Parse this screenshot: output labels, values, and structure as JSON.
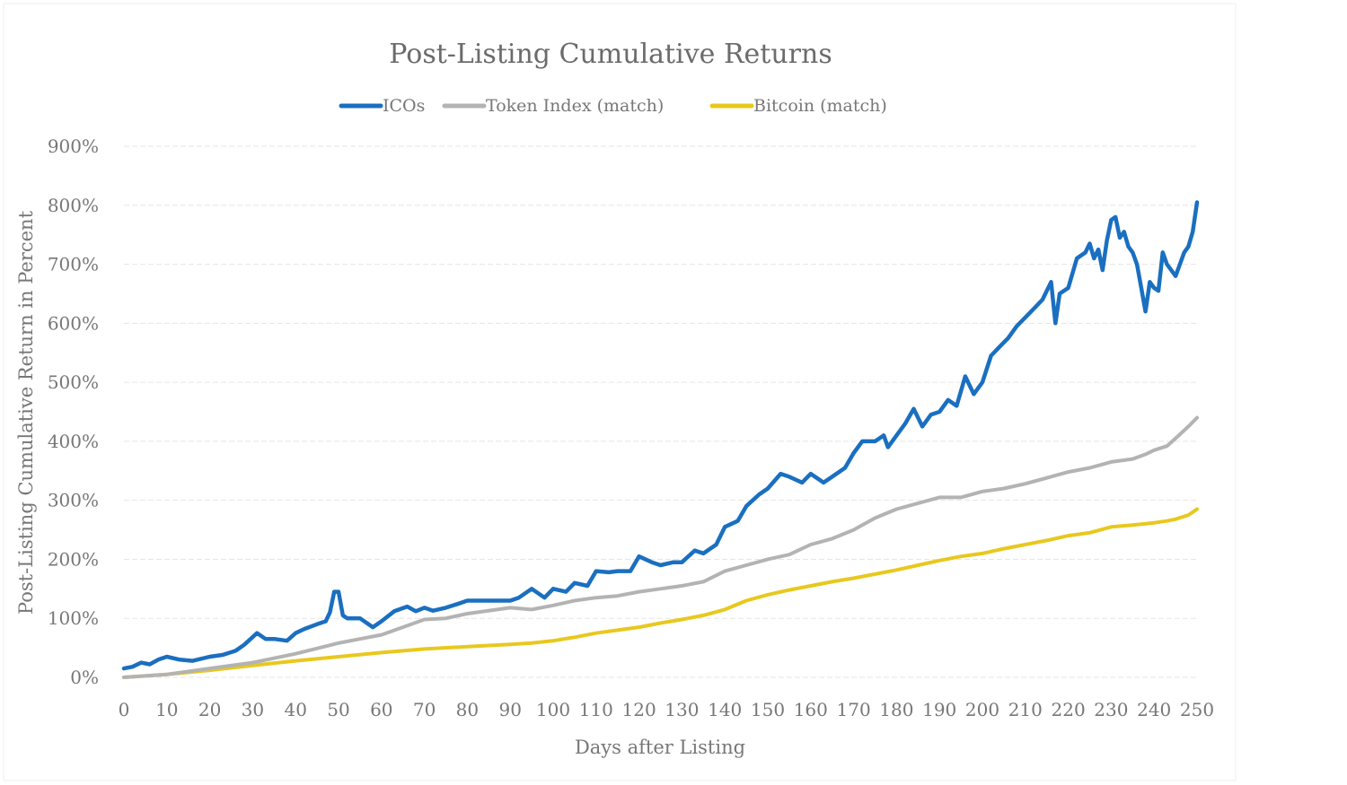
{
  "chart_data": {
    "type": "line",
    "title": "Post-Listing Cumulative Returns",
    "xlabel": "Days after Listing",
    "ylabel": "Post-Listing Cumulative Return in Percent",
    "xlim": [
      0,
      250
    ],
    "ylim": [
      0,
      900
    ],
    "x_ticks": [
      0,
      10,
      20,
      30,
      40,
      50,
      60,
      70,
      80,
      90,
      100,
      110,
      120,
      130,
      140,
      150,
      160,
      170,
      180,
      190,
      200,
      210,
      220,
      230,
      240,
      250
    ],
    "y_ticks": [
      0,
      100,
      200,
      300,
      400,
      500,
      600,
      700,
      800,
      900
    ],
    "y_tick_labels": [
      "0%",
      "100%",
      "200%",
      "300%",
      "400%",
      "500%",
      "600%",
      "700%",
      "800%",
      "900%"
    ],
    "grid": true,
    "legend_position": "top-center",
    "series": [
      {
        "name": "ICOs",
        "color": "#1a6fc0",
        "x": [
          0,
          2,
          4,
          6,
          8,
          10,
          13,
          16,
          20,
          23,
          26,
          28,
          31,
          33,
          35,
          38,
          40,
          42,
          45,
          47,
          48,
          49,
          50,
          51,
          52,
          55,
          58,
          60,
          63,
          66,
          68,
          70,
          72,
          75,
          78,
          80,
          85,
          90,
          92,
          95,
          98,
          100,
          103,
          105,
          108,
          110,
          113,
          115,
          118,
          120,
          123,
          125,
          128,
          130,
          133,
          135,
          138,
          140,
          143,
          145,
          148,
          150,
          153,
          155,
          158,
          160,
          163,
          165,
          168,
          170,
          172,
          175,
          177,
          178,
          180,
          182,
          184,
          186,
          188,
          190,
          192,
          194,
          196,
          198,
          200,
          202,
          204,
          206,
          208,
          210,
          212,
          214,
          216,
          217,
          218,
          220,
          222,
          224,
          225,
          226,
          227,
          228,
          229,
          230,
          231,
          232,
          233,
          234,
          235,
          236,
          237,
          238,
          239,
          240,
          241,
          242,
          243,
          244,
          245,
          246,
          247,
          248,
          249,
          250
        ],
        "values": [
          15,
          18,
          25,
          22,
          30,
          35,
          30,
          28,
          35,
          38,
          45,
          55,
          75,
          65,
          65,
          62,
          75,
          82,
          90,
          95,
          110,
          145,
          145,
          105,
          100,
          100,
          85,
          95,
          112,
          120,
          112,
          118,
          113,
          118,
          125,
          130,
          130,
          130,
          135,
          150,
          135,
          150,
          145,
          160,
          155,
          180,
          178,
          180,
          180,
          205,
          195,
          190,
          195,
          195,
          215,
          210,
          225,
          255,
          265,
          290,
          310,
          320,
          345,
          340,
          330,
          345,
          330,
          340,
          355,
          380,
          400,
          400,
          410,
          390,
          410,
          430,
          455,
          425,
          445,
          450,
          470,
          460,
          510,
          480,
          500,
          545,
          560,
          575,
          595,
          610,
          625,
          640,
          670,
          600,
          650,
          660,
          710,
          720,
          735,
          710,
          725,
          690,
          740,
          775,
          780,
          745,
          755,
          730,
          720,
          700,
          660,
          620,
          670,
          660,
          655,
          720,
          700,
          690,
          680,
          700,
          720,
          730,
          755,
          805
        ]
      },
      {
        "name": "Token Index (match)",
        "color": "#b3b3b3",
        "x": [
          0,
          10,
          20,
          30,
          40,
          50,
          55,
          60,
          65,
          70,
          75,
          80,
          90,
          95,
          100,
          105,
          110,
          115,
          120,
          125,
          130,
          135,
          140,
          145,
          150,
          155,
          160,
          165,
          170,
          175,
          180,
          185,
          190,
          195,
          200,
          205,
          210,
          215,
          220,
          225,
          230,
          235,
          238,
          240,
          243,
          245,
          248,
          250
        ],
        "values": [
          0,
          5,
          15,
          25,
          40,
          58,
          65,
          72,
          85,
          98,
          100,
          108,
          118,
          115,
          122,
          130,
          135,
          138,
          145,
          150,
          155,
          162,
          180,
          190,
          200,
          208,
          225,
          235,
          250,
          270,
          285,
          295,
          305,
          305,
          315,
          320,
          328,
          338,
          348,
          355,
          365,
          370,
          378,
          385,
          392,
          405,
          425,
          440
        ]
      },
      {
        "name": "Bitcoin (match)",
        "color": "#e8c81e",
        "x": [
          0,
          10,
          20,
          30,
          40,
          50,
          60,
          70,
          80,
          90,
          95,
          100,
          105,
          110,
          115,
          120,
          125,
          130,
          135,
          140,
          145,
          150,
          155,
          160,
          165,
          170,
          175,
          180,
          185,
          190,
          195,
          200,
          205,
          210,
          215,
          220,
          225,
          230,
          235,
          240,
          243,
          245,
          248,
          250
        ],
        "values": [
          0,
          5,
          12,
          20,
          28,
          35,
          42,
          48,
          52,
          56,
          58,
          62,
          68,
          75,
          80,
          85,
          92,
          98,
          105,
          115,
          130,
          140,
          148,
          155,
          162,
          168,
          175,
          182,
          190,
          198,
          205,
          210,
          218,
          225,
          232,
          240,
          245,
          255,
          258,
          262,
          265,
          268,
          275,
          285
        ]
      }
    ]
  }
}
